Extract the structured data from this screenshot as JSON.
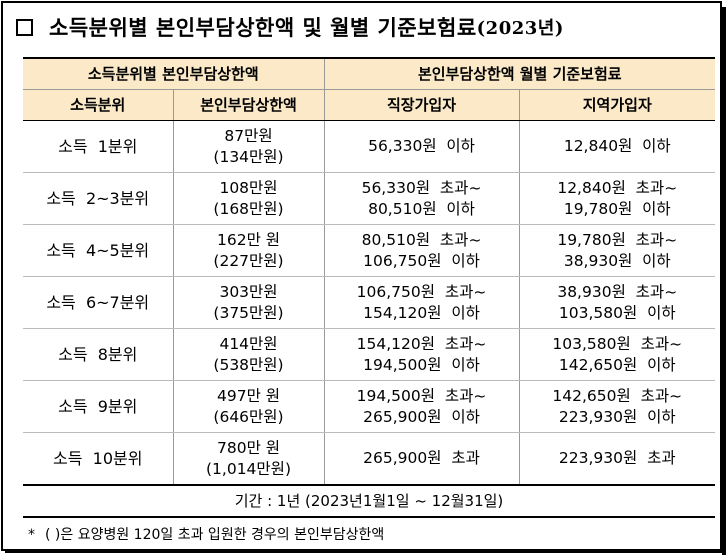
{
  "title": {
    "main": "소득분위별 본인부담상한액 및 월별 기준보험료",
    "year": "(2023년)"
  },
  "header": {
    "group_left": "소득분위별 본인부담상한액",
    "group_right": "본인부담상한액 월별 기준보험료",
    "col1": "소득분위",
    "col2": "본인부담상한액",
    "col3": "직장가입자",
    "col4": "지역가입자"
  },
  "rows": [
    {
      "bracket": "소득  1분위",
      "limit": "87만원",
      "limit_hosp": "(134만원)",
      "employee_1": "56,330원  이하",
      "employee_2": "",
      "regional_1": "12,840원  이하",
      "regional_2": ""
    },
    {
      "bracket": "소득  2~3분위",
      "limit": "108만원",
      "limit_hosp": "(168만원)",
      "employee_1": "56,330원  초과~",
      "employee_2": "80,510원  이하",
      "regional_1": "12,840원  초과~",
      "regional_2": "19,780원  이하"
    },
    {
      "bracket": "소득  4~5분위",
      "limit": "162만 원",
      "limit_hosp": "(227만원)",
      "employee_1": "80,510원  초과~",
      "employee_2": "106,750원  이하",
      "regional_1": "19,780원  초과~",
      "regional_2": "38,930원  이하"
    },
    {
      "bracket": "소득  6~7분위",
      "limit": "303만원",
      "limit_hosp": "(375만원)",
      "employee_1": "106,750원  초과~",
      "employee_2": "154,120원  이하",
      "regional_1": "38,930원  초과~",
      "regional_2": "103,580원  이하"
    },
    {
      "bracket": "소득  8분위",
      "limit": "414만원",
      "limit_hosp": "(538만원)",
      "employee_1": "154,120원  초과~",
      "employee_2": "194,500원  이하",
      "regional_1": "103,580원  초과~",
      "regional_2": "142,650원  이하"
    },
    {
      "bracket": "소득  9분위",
      "limit": "497만 원",
      "limit_hosp": "(646만원)",
      "employee_1": "194,500원  초과~",
      "employee_2": "265,900원  이하",
      "regional_1": "142,650원  초과~",
      "regional_2": "223,930원  이하"
    },
    {
      "bracket": "소득  10분위",
      "limit": "780만 원",
      "limit_hosp": "(1,014만원)",
      "employee_1": "265,900원  초과",
      "employee_2": "",
      "regional_1": "223,930원  초과",
      "regional_2": ""
    }
  ],
  "period": "기간 : 1년  (2023년1월1일 ~ 12월31일)",
  "note": {
    "star": "*",
    "paren": "(     )",
    "text": "은  요양병원  120일  초과  입원한  경우의  본인부담상한액"
  }
}
